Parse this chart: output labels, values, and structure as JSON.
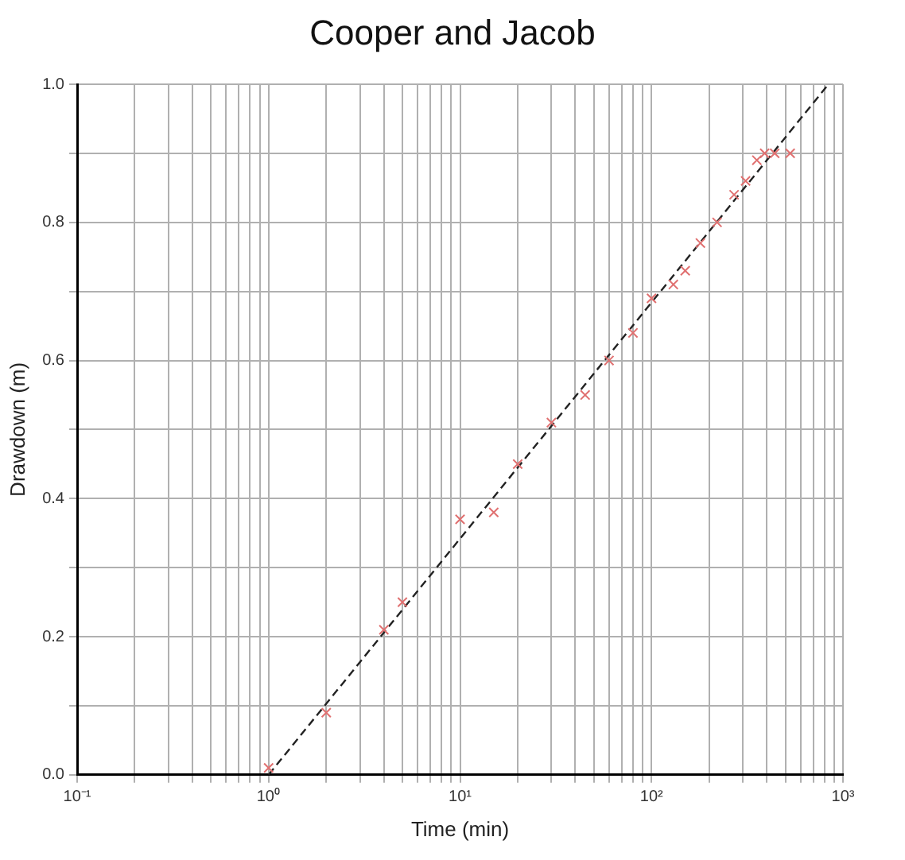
{
  "chart_data": {
    "type": "scatter",
    "title": "Cooper and Jacob",
    "xlabel": "Time (min)",
    "ylabel": "Drawdown (m)",
    "log": "x",
    "xlim": [
      0.1,
      1000
    ],
    "xticks": [
      {
        "value": 0.1,
        "label": "10⁻¹"
      },
      {
        "value": 0.2,
        "label": null
      },
      {
        "value": 0.3,
        "label": null
      },
      {
        "value": 0.4,
        "label": null
      },
      {
        "value": 0.5,
        "label": null
      },
      {
        "value": 0.6,
        "label": null
      },
      {
        "value": 0.7,
        "label": null
      },
      {
        "value": 0.8,
        "label": null
      },
      {
        "value": 0.9,
        "label": null
      },
      {
        "value": 1,
        "label": "10⁰"
      },
      {
        "value": 2,
        "label": null
      },
      {
        "value": 3,
        "label": null
      },
      {
        "value": 4,
        "label": null
      },
      {
        "value": 5,
        "label": null
      },
      {
        "value": 6,
        "label": null
      },
      {
        "value": 7,
        "label": null
      },
      {
        "value": 8,
        "label": null
      },
      {
        "value": 9,
        "label": null
      },
      {
        "value": 10,
        "label": "10¹"
      },
      {
        "value": 20,
        "label": null
      },
      {
        "value": 30,
        "label": null
      },
      {
        "value": 40,
        "label": null
      },
      {
        "value": 50,
        "label": null
      },
      {
        "value": 60,
        "label": null
      },
      {
        "value": 70,
        "label": null
      },
      {
        "value": 80,
        "label": null
      },
      {
        "value": 90,
        "label": null
      },
      {
        "value": 100,
        "label": "10²"
      },
      {
        "value": 200,
        "label": null
      },
      {
        "value": 300,
        "label": null
      },
      {
        "value": 400,
        "label": null
      },
      {
        "value": 500,
        "label": null
      },
      {
        "value": 600,
        "label": null
      },
      {
        "value": 700,
        "label": null
      },
      {
        "value": 800,
        "label": null
      },
      {
        "value": 900,
        "label": null
      },
      {
        "value": 1000,
        "label": "10³"
      }
    ],
    "ylim": [
      0,
      1
    ],
    "yticks": [
      {
        "value": 0,
        "label": "0.0"
      },
      {
        "value": 0.1,
        "label": null
      },
      0.2,
      {
        "value": 0.3,
        "label": null
      },
      0.4,
      {
        "value": 0.5,
        "label": null
      },
      0.6,
      {
        "value": 0.7,
        "label": null
      },
      0.8,
      {
        "value": 0.9,
        "label": null
      },
      {
        "value": 1,
        "label": "1.0"
      }
    ],
    "grid": true,
    "legend": false,
    "series": [
      {
        "color": "#e07070",
        "marker": "cross",
        "x": [
          1,
          2,
          4,
          5,
          10,
          15,
          20,
          30,
          45,
          60,
          80,
          100,
          130,
          150,
          180,
          220,
          270,
          310,
          355,
          390,
          440,
          530
        ],
        "values": [
          0.01,
          0.09,
          0.21,
          0.25,
          0.37,
          0.38,
          0.45,
          0.51,
          0.55,
          0.6,
          0.64,
          0.69,
          0.71,
          0.73,
          0.77,
          0.8,
          0.84,
          0.86,
          0.89,
          0.9,
          0.9,
          0.9
        ]
      },
      {
        "type": "line",
        "color": "#222222",
        "line_style": "dashed",
        "marker": "none",
        "x": [
          1,
          840
        ],
        "values": [
          0,
          1
        ]
      }
    ]
  }
}
